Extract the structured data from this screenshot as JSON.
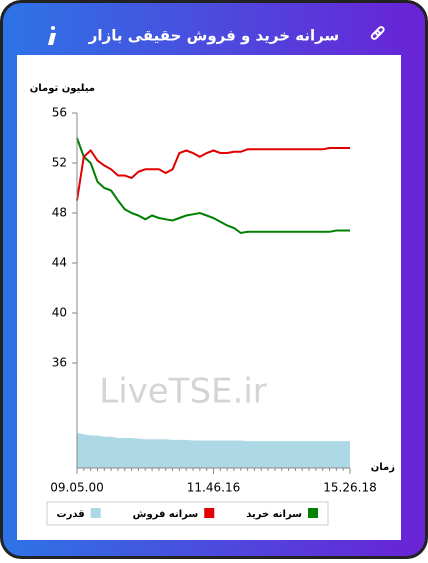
{
  "chart_data": {
    "type": "line",
    "title": "سرانه خرید و فروش حقیقی بازار",
    "y_label": "میلیون تومان",
    "x_label": "زمان",
    "watermark": "LiveTSE.ir",
    "categories": [
      "09.05.00",
      null,
      null,
      null,
      null,
      null,
      null,
      null,
      null,
      null,
      null,
      null,
      null,
      null,
      null,
      null,
      null,
      null,
      null,
      null,
      "11.46.16",
      null,
      null,
      null,
      null,
      null,
      null,
      null,
      null,
      null,
      null,
      null,
      null,
      null,
      null,
      null,
      null,
      null,
      null,
      null,
      "15.26.18"
    ],
    "series": [
      {
        "name": "سرانه خرید",
        "color": "#008000",
        "kind": "line",
        "values": [
          54.0,
          52.5,
          52.0,
          50.5,
          50.0,
          49.8,
          49.0,
          48.3,
          48.0,
          47.8,
          47.5,
          47.8,
          47.6,
          47.5,
          47.4,
          47.6,
          47.8,
          47.9,
          48.0,
          47.8,
          47.6,
          47.3,
          47.0,
          46.8,
          46.4,
          46.5,
          46.5,
          46.5,
          46.5,
          46.5,
          46.5,
          46.5,
          46.5,
          46.5,
          46.5,
          46.5,
          46.5,
          46.5,
          46.6,
          46.6,
          46.6
        ]
      },
      {
        "name": "سرانه فروش",
        "color": "#e00000",
        "kind": "line",
        "values": [
          49.0,
          52.5,
          53.0,
          52.2,
          51.8,
          51.5,
          51.0,
          51.0,
          50.8,
          51.3,
          51.5,
          51.5,
          51.5,
          51.2,
          51.5,
          52.8,
          53.0,
          52.8,
          52.5,
          52.8,
          53.0,
          52.8,
          52.8,
          52.9,
          52.9,
          53.1,
          53.1,
          53.1,
          53.1,
          53.1,
          53.1,
          53.1,
          53.1,
          53.1,
          53.1,
          53.1,
          53.1,
          53.2,
          53.2,
          53.2,
          53.2
        ]
      },
      {
        "name": "قدرت",
        "color": "#add8e6",
        "kind": "area",
        "values": [
          30.4,
          30.3,
          30.2,
          30.2,
          30.1,
          30.1,
          30.0,
          30.0,
          30.0,
          29.95,
          29.9,
          29.9,
          29.9,
          29.9,
          29.85,
          29.85,
          29.85,
          29.8,
          29.8,
          29.8,
          29.8,
          29.8,
          29.8,
          29.8,
          29.8,
          29.75,
          29.75,
          29.75,
          29.75,
          29.75,
          29.75,
          29.75,
          29.75,
          29.75,
          29.75,
          29.75,
          29.75,
          29.75,
          29.75,
          29.75,
          29.75
        ]
      }
    ],
    "ylim": [
      27.6,
      56
    ],
    "yticks": [
      36,
      40,
      44,
      48,
      52,
      56
    ]
  }
}
